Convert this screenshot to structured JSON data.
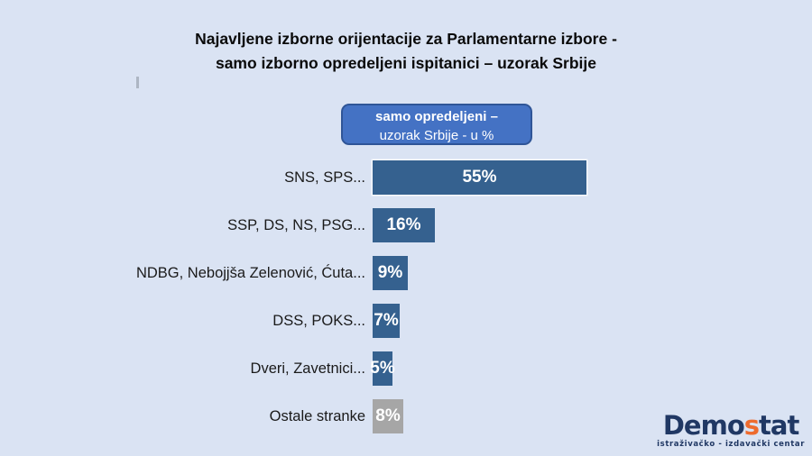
{
  "background_color": "#dae3f3",
  "title": {
    "line1": "Najavljene izborne orijentacije za Parlamentarne izbore -",
    "line2": "samo izborno opredeljeni ispitanici – uzorak Srbije"
  },
  "legend_box": {
    "line1": "samo opredeljeni –",
    "line2": "uzorak Srbije - u %",
    "fill_color": "#4472c4",
    "border_color": "#2f5597"
  },
  "chart_data": {
    "type": "bar",
    "orientation": "horizontal",
    "title": "Najavljene izborne orijentacije za Parlamentarne izbore - samo izborno opredeljeni ispitanici – uzorak Srbije",
    "subtitle": "samo opredeljeni – uzorak Srbije - u %",
    "categories": [
      "SNS, SPS...",
      "SSP, DS, NS, PSG...",
      "NDBG, Nebojjša Zelenović, Ćuta...",
      "DSS, POKS...",
      "Dveri, Zavetnici...",
      "Ostale stranke"
    ],
    "values": [
      55,
      16,
      9,
      7,
      5,
      8
    ],
    "value_labels": [
      "55%",
      "16%",
      "9%",
      "7%",
      "5%",
      "8%"
    ],
    "bar_colors": [
      "#35618f",
      "#35618f",
      "#35618f",
      "#35618f",
      "#35618f",
      "#a6a6a6"
    ],
    "data_label_style": "inside-center white bold percent",
    "xlabel": "",
    "ylabel": "",
    "xlim": [
      0,
      60
    ],
    "grid": false,
    "legend_position": "top-center"
  },
  "logo": {
    "part1": "Demo",
    "part2": "s",
    "part3": "tat",
    "tagline": "istraživačko - izdavački centar",
    "navy_color": "#203864",
    "accent_color": "#ee6b2e"
  }
}
